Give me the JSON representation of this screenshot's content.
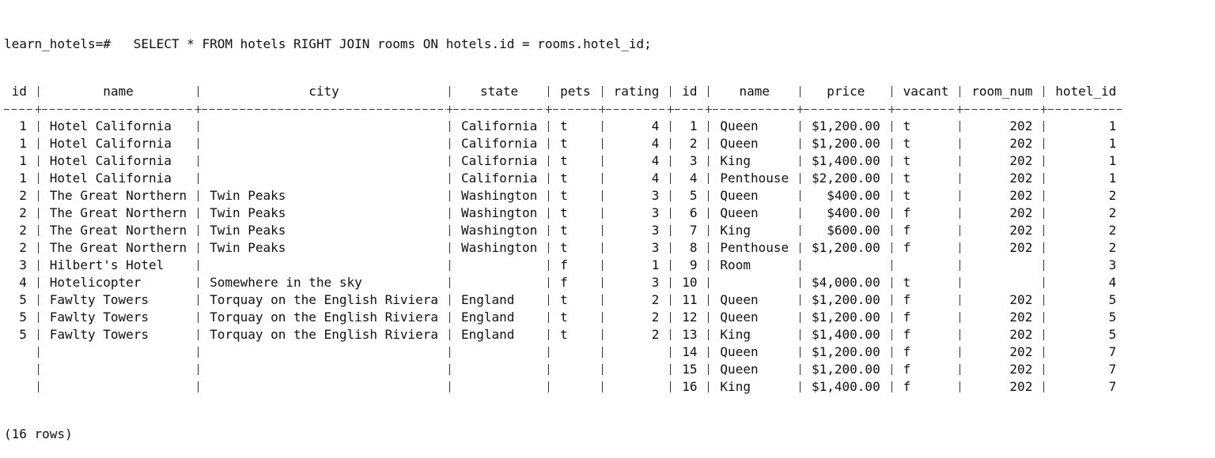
{
  "prompt": "learn_hotels=#",
  "command": "SELECT * FROM hotels RIGHT JOIN rooms ON hotels.id = rooms.hotel_id;",
  "table": {
    "columns": [
      "id",
      "name",
      "city",
      "state",
      "pets",
      "rating",
      "id",
      "name",
      "price",
      "vacant",
      "room_num",
      "hotel_id"
    ],
    "rows": [
      [
        1,
        "Hotel California",
        null,
        "California",
        "t",
        4,
        1,
        "Queen",
        "$1,200.00",
        "t",
        202,
        1
      ],
      [
        1,
        "Hotel California",
        null,
        "California",
        "t",
        4,
        2,
        "Queen",
        "$1,200.00",
        "t",
        202,
        1
      ],
      [
        1,
        "Hotel California",
        null,
        "California",
        "t",
        4,
        3,
        "King",
        "$1,400.00",
        "t",
        202,
        1
      ],
      [
        1,
        "Hotel California",
        null,
        "California",
        "t",
        4,
        4,
        "Penthouse",
        "$2,200.00",
        "t",
        202,
        1
      ],
      [
        2,
        "The Great Northern",
        "Twin Peaks",
        "Washington",
        "t",
        3,
        5,
        "Queen",
        "$400.00",
        "t",
        202,
        2
      ],
      [
        2,
        "The Great Northern",
        "Twin Peaks",
        "Washington",
        "t",
        3,
        6,
        "Queen",
        "$400.00",
        "f",
        202,
        2
      ],
      [
        2,
        "The Great Northern",
        "Twin Peaks",
        "Washington",
        "t",
        3,
        7,
        "King",
        "$600.00",
        "f",
        202,
        2
      ],
      [
        2,
        "The Great Northern",
        "Twin Peaks",
        "Washington",
        "t",
        3,
        8,
        "Penthouse",
        "$1,200.00",
        "f",
        202,
        2
      ],
      [
        3,
        "Hilbert's Hotel",
        null,
        null,
        "f",
        1,
        9,
        "Room",
        null,
        null,
        null,
        3
      ],
      [
        4,
        "Hotelicopter",
        "Somewhere in the sky",
        null,
        "f",
        3,
        10,
        null,
        "$4,000.00",
        "t",
        null,
        4
      ],
      [
        5,
        "Fawlty Towers",
        "Torquay on the English Riviera",
        "England",
        "t",
        2,
        11,
        "Queen",
        "$1,200.00",
        "f",
        202,
        5
      ],
      [
        5,
        "Fawlty Towers",
        "Torquay on the English Riviera",
        "England",
        "t",
        2,
        12,
        "Queen",
        "$1,200.00",
        "f",
        202,
        5
      ],
      [
        5,
        "Fawlty Towers",
        "Torquay on the English Riviera",
        "England",
        "t",
        2,
        13,
        "King",
        "$1,400.00",
        "f",
        202,
        5
      ],
      [
        null,
        null,
        null,
        null,
        null,
        null,
        14,
        "Queen",
        "$1,200.00",
        "f",
        202,
        7
      ],
      [
        null,
        null,
        null,
        null,
        null,
        null,
        15,
        "Queen",
        "$1,200.00",
        "f",
        202,
        7
      ],
      [
        null,
        null,
        null,
        null,
        null,
        null,
        16,
        "King",
        "$1,400.00",
        "f",
        202,
        7
      ]
    ]
  },
  "footer": "(16 rows)"
}
